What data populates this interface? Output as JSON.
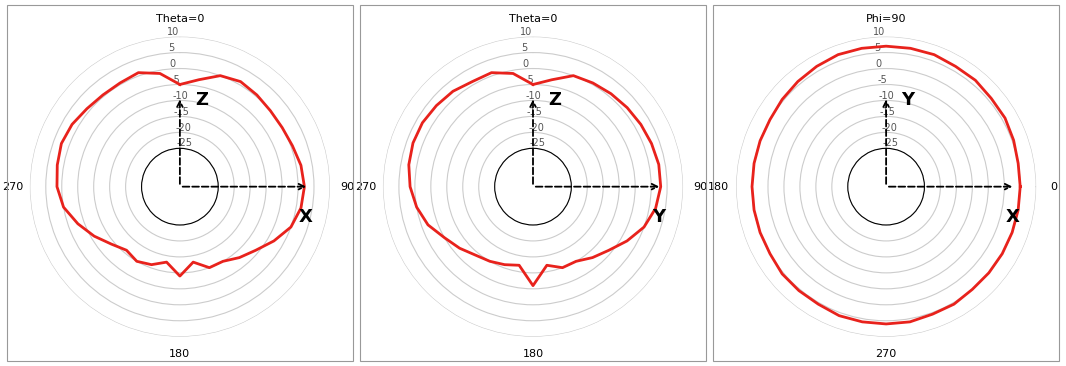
{
  "chart_data": [
    {
      "type": "polar",
      "theta": [
        0,
        10,
        20,
        30,
        40,
        50,
        60,
        70,
        80,
        90,
        100,
        110,
        120,
        130,
        140,
        150,
        160,
        170,
        180,
        190,
        200,
        210,
        220,
        230,
        240,
        250,
        260,
        270,
        280,
        290,
        300,
        310,
        320,
        330,
        340,
        350
      ],
      "values": [
        -5,
        -3,
        0,
        1,
        0.5,
        0,
        0,
        0.5,
        1.5,
        2,
        1.5,
        0,
        -3,
        -6,
        -8,
        -10,
        -10,
        -13,
        -9,
        -13,
        -11,
        -10,
        -11,
        -9,
        -6,
        -3,
        0,
        1.5,
        2,
        2.5,
        2,
        1,
        0.5,
        0.5,
        1,
        -1
      ],
      "color": "#e8221c",
      "ylim": [
        -25,
        10
      ],
      "yticks": [
        -25,
        -20,
        -15,
        -10,
        -5,
        0,
        5,
        10
      ],
      "xticks": [
        {
          "value": 0,
          "label": "Theta=0"
        },
        90,
        180,
        270
      ],
      "axis_labels": {
        "up": "Z",
        "right": "X"
      }
    },
    {
      "type": "polar",
      "theta": [
        0,
        10,
        20,
        30,
        40,
        50,
        60,
        70,
        80,
        90,
        100,
        110,
        120,
        130,
        140,
        150,
        160,
        170,
        180,
        190,
        200,
        210,
        220,
        230,
        240,
        250,
        260,
        270,
        280,
        290,
        300,
        310,
        320,
        330,
        340,
        350
      ],
      "values": [
        -5,
        -3,
        0,
        0.5,
        1,
        1.5,
        2,
        2.5,
        3,
        3,
        2,
        0,
        -3,
        -6,
        -8,
        -10,
        -10,
        -12,
        -6,
        -12,
        -11,
        -10,
        -9,
        -7,
        -5,
        -2,
        0,
        1.5,
        2.5,
        3,
        3,
        2.5,
        2,
        1,
        1,
        -1
      ],
      "color": "#e8221c",
      "ylim": [
        -25,
        10
      ],
      "yticks": [
        -25,
        -20,
        -15,
        -10,
        -5,
        0,
        5,
        10
      ],
      "xticks": [
        {
          "value": 0,
          "label": "Theta=0"
        },
        90,
        180,
        270
      ],
      "axis_labels": {
        "up": "Z",
        "right": "Y"
      }
    },
    {
      "type": "polar",
      "theta": [
        0,
        10,
        20,
        30,
        40,
        50,
        60,
        70,
        80,
        90,
        100,
        110,
        120,
        130,
        140,
        150,
        160,
        170,
        180,
        190,
        200,
        210,
        220,
        230,
        240,
        250,
        260,
        270,
        280,
        290,
        300,
        310,
        320,
        330,
        340,
        350
      ],
      "values": [
        5,
        5,
        5.5,
        6,
        6,
        6.5,
        6.5,
        7,
        7,
        7,
        7,
        7,
        6.5,
        6,
        5.5,
        5,
        5,
        5,
        5,
        5,
        5,
        5,
        5.5,
        5.5,
        5.5,
        6,
        6,
        6,
        6,
        5.5,
        5.5,
        5,
        5,
        5,
        5,
        5
      ],
      "color": "#e8221c",
      "ylim": [
        -25,
        10
      ],
      "yticks": [
        -25,
        -20,
        -15,
        -10,
        -5,
        0,
        5,
        10
      ],
      "xticks": [
        0,
        {
          "value": 90,
          "label": "Phi=90"
        },
        180,
        270
      ],
      "axis_labels": {
        "up": "Y",
        "right": "X"
      }
    }
  ]
}
